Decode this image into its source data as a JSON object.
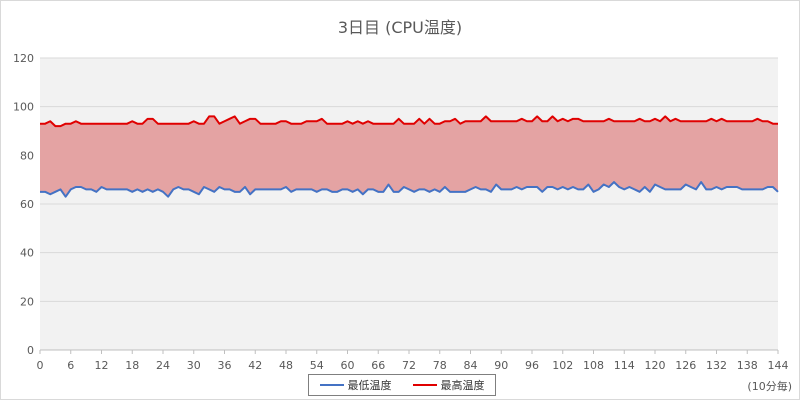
{
  "chart_data": {
    "type": "area",
    "title": "3日目 (CPU温度)",
    "x_unit_label": "(10分毎)",
    "ylim": [
      0,
      120
    ],
    "y_ticks": [
      0,
      20,
      40,
      60,
      80,
      100,
      120
    ],
    "xlim": [
      0,
      144
    ],
    "x_ticks": [
      0,
      6,
      12,
      18,
      24,
      30,
      36,
      42,
      48,
      54,
      60,
      66,
      72,
      78,
      84,
      90,
      96,
      102,
      108,
      114,
      120,
      126,
      132,
      138,
      144
    ],
    "grid": true,
    "legend_placement": "bottom",
    "colors": {
      "min": "#4472c4",
      "max": "#e00000",
      "band": "#e4a3a3",
      "plot_bg": "#f2f2f2",
      "grid": "#d9d9d9"
    },
    "series": [
      {
        "name": "最低温度",
        "values": [
          65,
          65,
          64,
          65,
          66,
          63,
          66,
          67,
          67,
          66,
          66,
          65,
          67,
          66,
          66,
          66,
          66,
          66,
          65,
          66,
          65,
          66,
          65,
          66,
          65,
          63,
          66,
          67,
          66,
          66,
          65,
          64,
          67,
          66,
          65,
          67,
          66,
          66,
          65,
          65,
          67,
          64,
          66,
          66,
          66,
          66,
          66,
          66,
          67,
          65,
          66,
          66,
          66,
          66,
          65,
          66,
          66,
          65,
          65,
          66,
          66,
          65,
          66,
          64,
          66,
          66,
          65,
          65,
          68,
          65,
          65,
          67,
          66,
          65,
          66,
          66,
          65,
          66,
          65,
          67,
          65,
          65,
          65,
          65,
          66,
          67,
          66,
          66,
          65,
          68,
          66,
          66,
          66,
          67,
          66,
          67,
          67,
          67,
          65,
          67,
          67,
          66,
          67,
          66,
          67,
          66,
          66,
          68,
          65,
          66,
          68,
          67,
          69,
          67,
          66,
          67,
          66,
          65,
          67,
          65,
          68,
          67,
          66,
          66,
          66,
          66,
          68,
          67,
          66,
          69,
          66,
          66,
          67,
          66,
          67,
          67,
          67,
          66,
          66,
          66,
          66,
          66,
          67,
          67,
          65
        ]
      },
      {
        "name": "最高温度",
        "values": [
          93,
          93,
          94,
          92,
          92,
          93,
          93,
          94,
          93,
          93,
          93,
          93,
          93,
          93,
          93,
          93,
          93,
          93,
          94,
          93,
          93,
          95,
          95,
          93,
          93,
          93,
          93,
          93,
          93,
          93,
          94,
          93,
          93,
          96,
          96,
          93,
          94,
          95,
          96,
          93,
          94,
          95,
          95,
          93,
          93,
          93,
          93,
          94,
          94,
          93,
          93,
          93,
          94,
          94,
          94,
          95,
          93,
          93,
          93,
          93,
          94,
          93,
          94,
          93,
          94,
          93,
          93,
          93,
          93,
          93,
          95,
          93,
          93,
          93,
          95,
          93,
          95,
          93,
          93,
          94,
          94,
          95,
          93,
          94,
          94,
          94,
          94,
          96,
          94,
          94,
          94,
          94,
          94,
          94,
          95,
          94,
          94,
          96,
          94,
          94,
          96,
          94,
          95,
          94,
          95,
          95,
          94,
          94,
          94,
          94,
          94,
          95,
          94,
          94,
          94,
          94,
          94,
          95,
          94,
          94,
          95,
          94,
          96,
          94,
          95,
          94,
          94,
          94,
          94,
          94,
          94,
          95,
          94,
          95,
          94,
          94,
          94,
          94,
          94,
          94,
          95,
          94,
          94,
          93,
          93
        ]
      }
    ]
  }
}
